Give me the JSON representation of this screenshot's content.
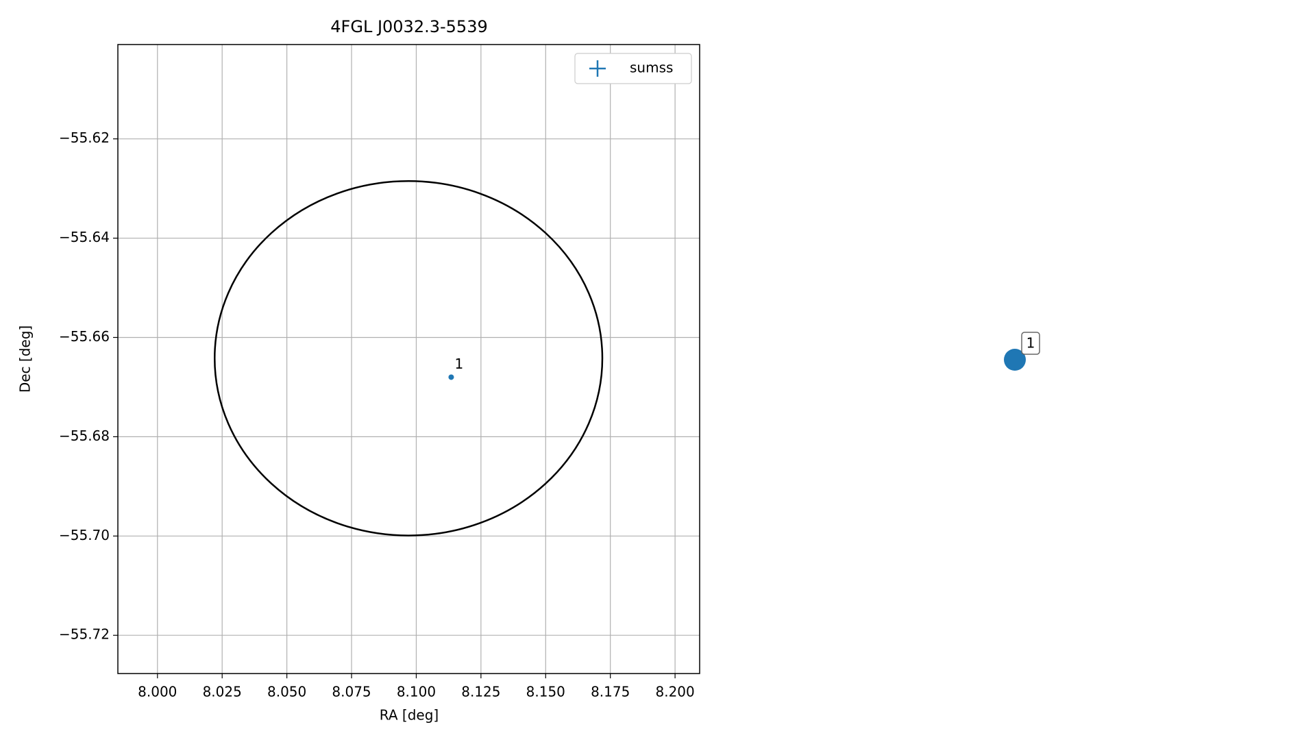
{
  "chart_data": {
    "type": "scatter",
    "title": "4FGL J0032.3-5539",
    "xlabel": "RA [deg]",
    "ylabel": "Dec [deg]",
    "xlim": [
      7.9847,
      8.2095
    ],
    "ylim": [
      -55.7277,
      -55.601
    ],
    "xticks": [
      {
        "value": 8,
        "label": "8.000"
      },
      8.025,
      {
        "value": 8.05,
        "label": "8.050"
      },
      8.075,
      {
        "value": 8.1,
        "label": "8.100"
      },
      8.125,
      {
        "value": 8.15,
        "label": "8.150"
      },
      8.175,
      {
        "value": 8.2,
        "label": "8.200"
      }
    ],
    "yticks": [
      {
        "value": -55.62,
        "label": "−55.62"
      },
      {
        "value": -55.64,
        "label": "−55.64"
      },
      {
        "value": -55.66,
        "label": "−55.66"
      },
      {
        "value": -55.68,
        "label": "−55.68"
      },
      {
        "value": -55.7,
        "label": "−55.70"
      },
      {
        "value": -55.72,
        "label": "−55.72"
      }
    ],
    "grid": true,
    "legend": "upper right",
    "ellipse": {
      "center": [
        8.097,
        -55.6642
      ],
      "radius_x": 0.0749,
      "radius_y": 0.0357,
      "color": "#000000"
    },
    "series": [
      {
        "name": "sumss",
        "color": "#1f77b4",
        "x": [
          8.1135
        ],
        "values": [
          -55.668
        ],
        "labels": [
          "1"
        ]
      }
    ]
  }
}
